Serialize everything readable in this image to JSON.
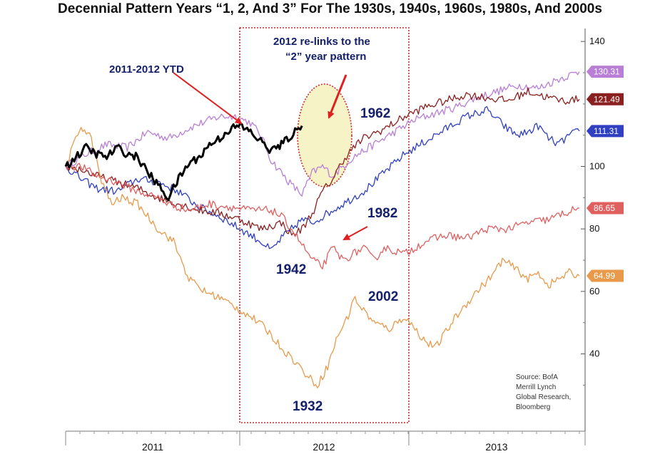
{
  "chart_data": {
    "type": "line",
    "title": "Decennial Pattern Years “1, 2, And 3” For The 1930s, 1940s, 1960s, 1980s, And 2000s",
    "xlabel": "",
    "ylabel": "",
    "ylim": [
      18,
      143
    ],
    "x_categories": [
      "2011",
      "2012",
      "2013"
    ],
    "y_ticks": [
      40,
      60,
      80,
      100,
      140
    ],
    "grid": false,
    "series": [
      {
        "name": "1962",
        "color": "#b97fd6",
        "end_label": "130.31",
        "points": [
          [
            0,
            100
          ],
          [
            4,
            104
          ],
          [
            8,
            107
          ],
          [
            12,
            106
          ],
          [
            16,
            111
          ],
          [
            20,
            109
          ],
          [
            25,
            113
          ],
          [
            30,
            116
          ],
          [
            33,
            116
          ],
          [
            36,
            114
          ],
          [
            38,
            110
          ],
          [
            40,
            102
          ],
          [
            42,
            98
          ],
          [
            44,
            94
          ],
          [
            46,
            91
          ],
          [
            48,
            98
          ],
          [
            50,
            100
          ],
          [
            52,
            97
          ],
          [
            54,
            100
          ],
          [
            56,
            103
          ],
          [
            60,
            107
          ],
          [
            64,
            111
          ],
          [
            68,
            115
          ],
          [
            72,
            117
          ],
          [
            76,
            119
          ],
          [
            80,
            122
          ],
          [
            84,
            124
          ],
          [
            88,
            126
          ],
          [
            92,
            125
          ],
          [
            96,
            128
          ],
          [
            100,
            130.31
          ]
        ]
      },
      {
        "name": "1982",
        "color": "#3040c0",
        "end_label": "111.31",
        "points": [
          [
            0,
            100
          ],
          [
            3,
            96
          ],
          [
            6,
            93
          ],
          [
            10,
            92
          ],
          [
            14,
            96
          ],
          [
            18,
            95
          ],
          [
            22,
            92
          ],
          [
            26,
            87
          ],
          [
            30,
            84
          ],
          [
            34,
            80
          ],
          [
            38,
            76
          ],
          [
            40,
            73
          ],
          [
            42,
            77
          ],
          [
            44,
            80
          ],
          [
            46,
            83
          ],
          [
            48,
            82
          ],
          [
            50,
            84
          ],
          [
            54,
            88
          ],
          [
            58,
            92
          ],
          [
            62,
            98
          ],
          [
            66,
            104
          ],
          [
            70,
            108
          ],
          [
            74,
            112
          ],
          [
            78,
            116
          ],
          [
            82,
            118
          ],
          [
            84,
            115
          ],
          [
            86,
            112
          ],
          [
            88,
            110
          ],
          [
            90,
            111
          ],
          [
            92,
            113
          ],
          [
            94,
            109
          ],
          [
            96,
            107
          ],
          [
            98,
            110
          ],
          [
            100,
            111.31
          ]
        ]
      },
      {
        "name": "1942",
        "color": "#8b2020",
        "end_label": "121.49",
        "points": [
          [
            0,
            100
          ],
          [
            3,
            99
          ],
          [
            6,
            97
          ],
          [
            10,
            95
          ],
          [
            14,
            93
          ],
          [
            18,
            90
          ],
          [
            22,
            88
          ],
          [
            26,
            86
          ],
          [
            30,
            85
          ],
          [
            34,
            83
          ],
          [
            38,
            80
          ],
          [
            42,
            82
          ],
          [
            44,
            78
          ],
          [
            46,
            80
          ],
          [
            48,
            85
          ],
          [
            50,
            92
          ],
          [
            52,
            96
          ],
          [
            54,
            102
          ],
          [
            56,
            106
          ],
          [
            58,
            109
          ],
          [
            62,
            112
          ],
          [
            66,
            116
          ],
          [
            70,
            119
          ],
          [
            74,
            121
          ],
          [
            78,
            123
          ],
          [
            82,
            122
          ],
          [
            86,
            121
          ],
          [
            90,
            124
          ],
          [
            94,
            122
          ],
          [
            97,
            121
          ],
          [
            100,
            121.49
          ]
        ]
      },
      {
        "name": "2002",
        "color": "#e06060",
        "end_label": "86.65",
        "points": [
          [
            0,
            100
          ],
          [
            3,
            100
          ],
          [
            6,
            97
          ],
          [
            10,
            95
          ],
          [
            14,
            92
          ],
          [
            18,
            90
          ],
          [
            20,
            88
          ],
          [
            24,
            86
          ],
          [
            28,
            88
          ],
          [
            32,
            87
          ],
          [
            36,
            86
          ],
          [
            40,
            86
          ],
          [
            42,
            84
          ],
          [
            44,
            80
          ],
          [
            46,
            75
          ],
          [
            48,
            70
          ],
          [
            50,
            68
          ],
          [
            52,
            74
          ],
          [
            54,
            70
          ],
          [
            56,
            72
          ],
          [
            58,
            74
          ],
          [
            60,
            70
          ],
          [
            62,
            74
          ],
          [
            66,
            72
          ],
          [
            70,
            76
          ],
          [
            74,
            78
          ],
          [
            78,
            77
          ],
          [
            82,
            80
          ],
          [
            86,
            80
          ],
          [
            90,
            82
          ],
          [
            94,
            83
          ],
          [
            97,
            85
          ],
          [
            100,
            86.65
          ]
        ]
      },
      {
        "name": "1932",
        "color": "#e89a4a",
        "end_label": "64.99",
        "points": [
          [
            0,
            100
          ],
          [
            3,
            113
          ],
          [
            5,
            109
          ],
          [
            7,
            95
          ],
          [
            9,
            88
          ],
          [
            11,
            90
          ],
          [
            14,
            88
          ],
          [
            18,
            80
          ],
          [
            21,
            76
          ],
          [
            24,
            64
          ],
          [
            27,
            60
          ],
          [
            30,
            58
          ],
          [
            33,
            55
          ],
          [
            36,
            52
          ],
          [
            39,
            48
          ],
          [
            42,
            42
          ],
          [
            45,
            37
          ],
          [
            47,
            33
          ],
          [
            49,
            30
          ],
          [
            51,
            36
          ],
          [
            53,
            46
          ],
          [
            55,
            52
          ],
          [
            56,
            58
          ],
          [
            58,
            54
          ],
          [
            60,
            50
          ],
          [
            63,
            48
          ],
          [
            66,
            52
          ],
          [
            68,
            48
          ],
          [
            70,
            44
          ],
          [
            72,
            42
          ],
          [
            74,
            47
          ],
          [
            76,
            52
          ],
          [
            78,
            56
          ],
          [
            80,
            60
          ],
          [
            83,
            65
          ],
          [
            85,
            70
          ],
          [
            87,
            68
          ],
          [
            90,
            64
          ],
          [
            92,
            66
          ],
          [
            94,
            62
          ],
          [
            96,
            64
          ],
          [
            98,
            66
          ],
          [
            100,
            64.99
          ]
        ]
      },
      {
        "name": "2011-2012 YTD",
        "color": "#000000",
        "end_label": "",
        "points": [
          [
            0,
            100
          ],
          [
            2,
            103
          ],
          [
            4,
            106
          ],
          [
            6,
            104
          ],
          [
            8,
            103
          ],
          [
            10,
            106
          ],
          [
            12,
            104
          ],
          [
            14,
            103
          ],
          [
            16,
            98
          ],
          [
            18,
            94
          ],
          [
            20,
            90
          ],
          [
            22,
            96
          ],
          [
            24,
            101
          ],
          [
            26,
            103
          ],
          [
            28,
            107
          ],
          [
            30,
            109
          ],
          [
            32,
            112
          ],
          [
            34,
            113
          ],
          [
            36,
            111
          ],
          [
            38,
            108
          ],
          [
            40,
            105
          ],
          [
            42,
            107
          ],
          [
            44,
            110
          ],
          [
            46,
            113
          ]
        ]
      }
    ],
    "annotations": [
      {
        "text": "2011-2012 YTD",
        "role": "label"
      },
      {
        "text": "2012 re-links to the",
        "role": "callout"
      },
      {
        "text": "“2” year pattern",
        "role": "callout"
      },
      {
        "text": "1962",
        "role": "label"
      },
      {
        "text": "1982",
        "role": "label"
      },
      {
        "text": "1942",
        "role": "label"
      },
      {
        "text": "2002",
        "role": "label"
      },
      {
        "text": "1932",
        "role": "label"
      }
    ],
    "source": [
      "Source: BofA",
      "Merrill Lynch",
      "Global Research,",
      "Bloomberg"
    ]
  }
}
